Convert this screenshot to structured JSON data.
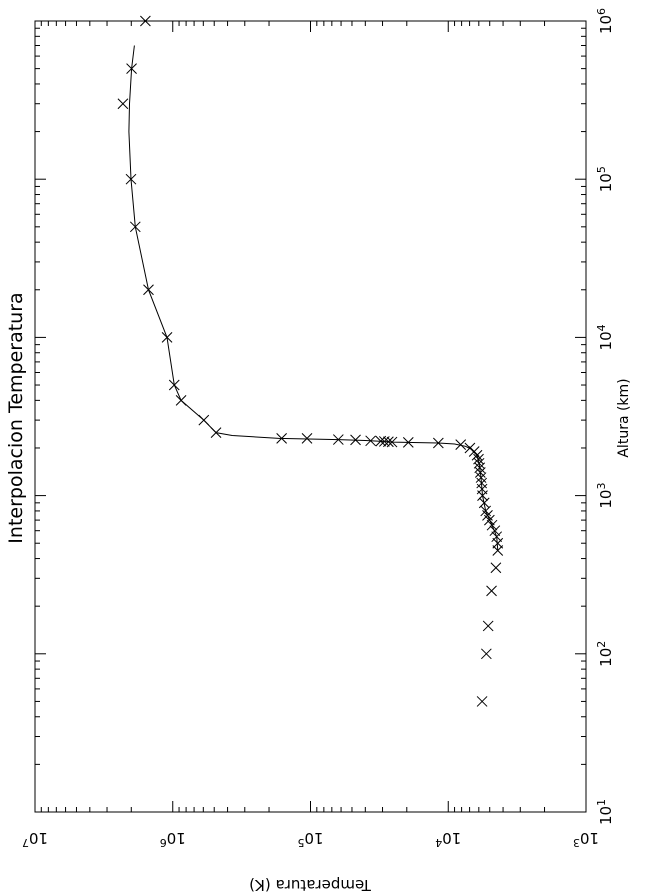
{
  "chart_data": {
    "type": "scatter",
    "title": "Interpolacion  Temperatura",
    "xlabel": "Altura  (km)",
    "ylabel": "Temperatura  (K)",
    "x_scale": "log",
    "y_scale": "log",
    "xlim": [
      10,
      1000000
    ],
    "ylim": [
      1000,
      10000000
    ],
    "x_ticks": [
      {
        "value": 10,
        "base": "10",
        "exp": "1"
      },
      {
        "value": 100,
        "base": "10",
        "exp": "2"
      },
      {
        "value": 1000,
        "base": "10",
        "exp": "3"
      },
      {
        "value": 10000,
        "base": "10",
        "exp": "4"
      },
      {
        "value": 100000,
        "base": "10",
        "exp": "5"
      },
      {
        "value": 1000000,
        "base": "10",
        "exp": "6"
      }
    ],
    "y_ticks": [
      {
        "value": 1000,
        "base": "10",
        "exp": "3"
      },
      {
        "value": 10000,
        "base": "10",
        "exp": "4"
      },
      {
        "value": 100000,
        "base": "10",
        "exp": "5"
      },
      {
        "value": 1000000,
        "base": "10",
        "exp": "6"
      },
      {
        "value": 10000000,
        "base": "10",
        "exp": "7"
      }
    ],
    "series": [
      {
        "type": "scatter",
        "marker": "x",
        "points": [
          [
            50,
            5680
          ],
          [
            100,
            5290
          ],
          [
            150,
            5130
          ],
          [
            250,
            4850
          ],
          [
            350,
            4510
          ],
          [
            450,
            4370
          ],
          [
            500,
            4370
          ],
          [
            550,
            4450
          ],
          [
            600,
            4590
          ],
          [
            650,
            4810
          ],
          [
            700,
            5030
          ],
          [
            750,
            5190
          ],
          [
            800,
            5350
          ],
          [
            900,
            5480
          ],
          [
            1000,
            5640
          ],
          [
            1100,
            5680
          ],
          [
            1200,
            5720
          ],
          [
            1300,
            5780
          ],
          [
            1400,
            5850
          ],
          [
            1500,
            5910
          ],
          [
            1600,
            5970
          ],
          [
            1700,
            6030
          ],
          [
            1800,
            6180
          ],
          [
            1900,
            6480
          ],
          [
            2000,
            6960
          ],
          [
            2100,
            8120
          ],
          [
            2150,
            11800
          ],
          [
            2170,
            19500
          ],
          [
            2180,
            25600
          ],
          [
            2190,
            27200
          ],
          [
            2200,
            29100
          ],
          [
            2210,
            30900
          ],
          [
            2220,
            36600
          ],
          [
            2250,
            47100
          ],
          [
            2260,
            62800
          ],
          [
            2300,
            106000
          ],
          [
            2300,
            162000
          ],
          [
            2500,
            485000
          ],
          [
            3000,
            595000
          ],
          [
            4000,
            870000
          ],
          [
            5000,
            975000
          ],
          [
            10000,
            1100000
          ],
          [
            20000,
            1500000
          ],
          [
            50000,
            1870000
          ],
          [
            100000,
            2010000
          ],
          [
            300000,
            2300000
          ],
          [
            500000,
            1990000
          ],
          [
            1000000,
            1580000
          ]
        ]
      },
      {
        "type": "line",
        "points": [
          [
            450,
            4370
          ],
          [
            550,
            4450
          ],
          [
            650,
            4810
          ],
          [
            800,
            5350
          ],
          [
            1000,
            5640
          ],
          [
            1300,
            5780
          ],
          [
            1600,
            5970
          ],
          [
            1800,
            6180
          ],
          [
            1950,
            6700
          ],
          [
            2050,
            7500
          ],
          [
            2120,
            9000
          ],
          [
            2150,
            11800
          ],
          [
            2180,
            25000
          ],
          [
            2200,
            30000
          ],
          [
            2230,
            40000
          ],
          [
            2260,
            62800
          ],
          [
            2300,
            170000
          ],
          [
            2400,
            370000
          ],
          [
            2500,
            485000
          ],
          [
            3000,
            595000
          ],
          [
            4000,
            870000
          ],
          [
            5000,
            975000
          ],
          [
            10000,
            1100000
          ],
          [
            20000,
            1500000
          ],
          [
            50000,
            1870000
          ],
          [
            100000,
            2010000
          ],
          [
            200000,
            2080000
          ],
          [
            300000,
            2060000
          ],
          [
            500000,
            1990000
          ],
          [
            700000,
            1900000
          ]
        ]
      }
    ]
  }
}
